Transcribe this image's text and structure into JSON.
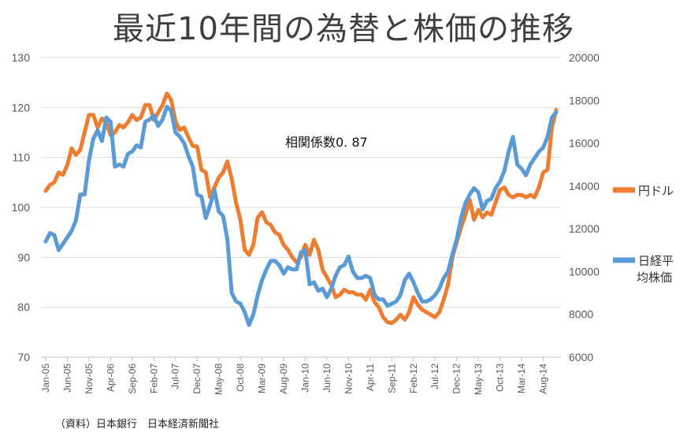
{
  "chart_data": {
    "type": "line",
    "title": "最近10年間の為替と株価の推移",
    "annotation": "相関係数0. 87",
    "source": "（資料）日本銀行　日本経済新聞社",
    "x_tick_labels": [
      "Jan-05",
      "Jun-05",
      "Nov-05",
      "Apr-06",
      "Sep-06",
      "Feb-07",
      "Jul-07",
      "Dec-07",
      "May-08",
      "Oct-08",
      "Mar-09",
      "Aug-09",
      "Jan-10",
      "Jun-10",
      "Nov-10",
      "Apr-11",
      "Sep-11",
      "Feb-12",
      "Jul-12",
      "Dec-12",
      "May-13",
      "Oct-13",
      "Mar-14",
      "Aug-14"
    ],
    "x_tick_positions": [
      0,
      5,
      10,
      15,
      20,
      25,
      30,
      35,
      40,
      45,
      50,
      55,
      60,
      65,
      70,
      75,
      80,
      85,
      90,
      95,
      100,
      105,
      110,
      115
    ],
    "y_left": {
      "min": 70,
      "max": 130,
      "step": 10
    },
    "y_right": {
      "min": 6000,
      "max": 20000,
      "step": 2000
    },
    "legend_position": "right",
    "gridlines": true,
    "series": [
      {
        "name": "円ドル",
        "axis": "left",
        "color": "#ED7D31",
        "values": [
          103.3,
          104.5,
          105.0,
          107.0,
          106.5,
          108.5,
          111.8,
          110.5,
          111.5,
          115.0,
          118.5,
          118.5,
          116.0,
          117.8,
          117.0,
          114.5,
          115.0,
          116.5,
          116.0,
          117.0,
          118.5,
          117.5,
          118.0,
          120.5,
          120.5,
          117.5,
          119.0,
          120.5,
          122.8,
          121.5,
          117.2,
          115.5,
          116.0,
          114.0,
          112.3,
          112.2,
          107.5,
          107.0,
          102.0,
          104.0,
          106.0,
          107.0,
          109.2,
          105.7,
          101.0,
          97.5,
          91.5,
          90.5,
          92.5,
          98.0,
          99.0,
          97.0,
          96.5,
          95.0,
          94.5,
          92.5,
          91.5,
          90.0,
          89.0,
          90.0,
          92.5,
          90.5,
          93.5,
          91.5,
          87.5,
          86.0,
          84.5,
          82.0,
          82.5,
          83.5,
          83.0,
          83.0,
          82.5,
          82.5,
          81.5,
          83.5,
          81.0,
          80.0,
          78.0,
          77.0,
          76.8,
          77.5,
          78.5,
          77.5,
          79.0,
          82.0,
          80.5,
          79.5,
          79.0,
          78.5,
          78.0,
          79.0,
          81.5,
          84.5,
          90.0,
          93.0,
          96.0,
          98.5,
          101.5,
          97.5,
          99.5,
          98.0,
          99.0,
          98.5,
          101.0,
          103.5,
          104.0,
          102.5,
          102.0,
          102.5,
          102.5,
          102.0,
          102.5,
          102.0,
          104.0,
          107.0,
          107.5,
          116.0,
          119.5
        ]
      },
      {
        "name": "日経平均株価",
        "axis": "right",
        "color": "#5B9BD5",
        "values": [
          11400,
          11800,
          11700,
          11000,
          11300,
          11600,
          11900,
          12400,
          13600,
          13600,
          15200,
          16200,
          16600,
          16100,
          17200,
          17000,
          14900,
          15000,
          14900,
          15500,
          15600,
          15900,
          15800,
          17000,
          17100,
          17300,
          16800,
          17100,
          17700,
          17500,
          16500,
          16300,
          16000,
          15400,
          14900,
          13600,
          13500,
          12500,
          13100,
          13800,
          12800,
          12600,
          11500,
          9000,
          8600,
          8500,
          8100,
          7500,
          8000,
          8900,
          9600,
          10100,
          10500,
          10500,
          10300,
          9900,
          10200,
          10100,
          10100,
          10900,
          11000,
          9400,
          9500,
          9100,
          9200,
          8800,
          9200,
          9800,
          10200,
          10300,
          10700,
          10000,
          9700,
          9700,
          9800,
          9700,
          8900,
          8700,
          8700,
          8400,
          8500,
          8600,
          8900,
          9600,
          9900,
          9500,
          9000,
          8600,
          8600,
          8700,
          8900,
          9200,
          9700,
          10000,
          10800,
          11500,
          12500,
          13200,
          13600,
          13900,
          13700,
          12900,
          13300,
          13400,
          13900,
          14200,
          14700,
          15600,
          16300,
          15000,
          14800,
          14500,
          15000,
          15300,
          15600,
          15800,
          16300,
          17200,
          17450
        ]
      }
    ]
  }
}
